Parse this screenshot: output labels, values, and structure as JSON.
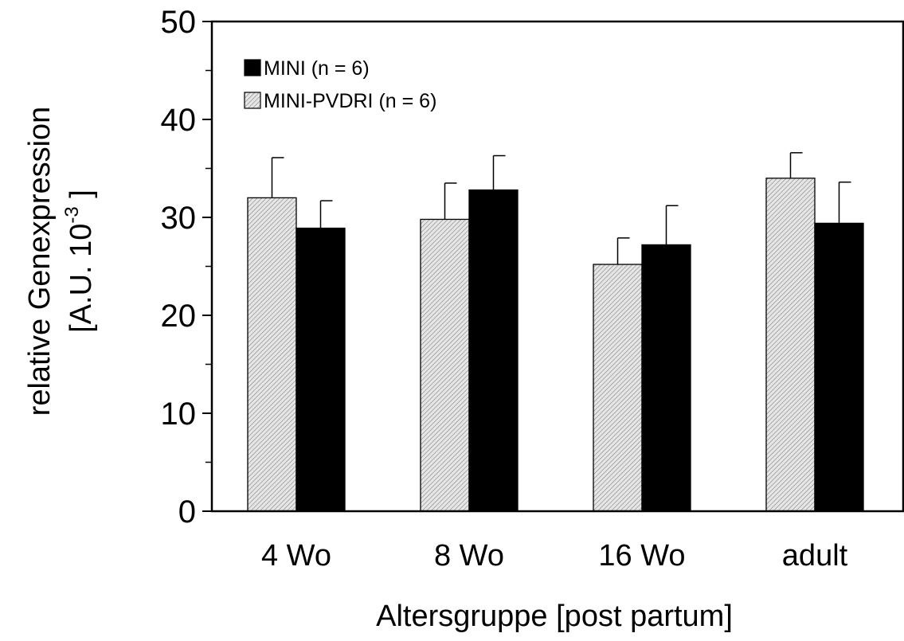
{
  "chart_data": {
    "type": "bar",
    "categories": [
      "4 Wo",
      "8 Wo",
      "16 Wo",
      "adult"
    ],
    "series": [
      {
        "name": "MINI-PVDRI (n = 6)",
        "values": [
          32.0,
          29.8,
          25.2,
          34.0
        ],
        "errors": [
          4.1,
          3.7,
          2.7,
          2.6
        ],
        "color": "#d9d9d9",
        "pattern": "hatched"
      },
      {
        "name": "MINI (n = 6)",
        "values": [
          28.9,
          32.8,
          27.2,
          29.4
        ],
        "errors": [
          2.8,
          3.5,
          4.0,
          4.2
        ],
        "color": "#000000",
        "pattern": "solid"
      }
    ],
    "legend_order": [
      1,
      0
    ],
    "yticks": [
      "0",
      "10",
      "20",
      "30",
      "40",
      "50"
    ],
    "ylim": [
      0,
      50
    ],
    "minor_tick_step": 5,
    "xlabel": "Altersgruppe [post partum]",
    "ylabel_line1": "relative Genexpression",
    "ylabel_line2_prefix": "[A.U. 10",
    "ylabel_line2_sup": "-3",
    "ylabel_line2_suffix": " ]",
    "legend_position": "top-left",
    "grid": false
  }
}
